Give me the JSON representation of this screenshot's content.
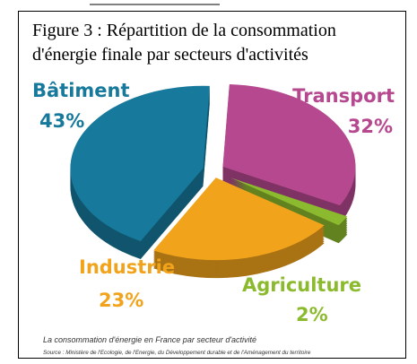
{
  "chart_data": {
    "type": "pie",
    "title": "Figure 3 : Répartition de la consommation d'énergie finale par secteurs d'activités",
    "categories": [
      "Transport",
      "Agriculture",
      "Industrie",
      "Bâtiment"
    ],
    "values": [
      32,
      2,
      23,
      43
    ],
    "value_labels": [
      "32%",
      "2%",
      "23%",
      "43%"
    ],
    "colors": [
      "#b5488f",
      "#8cba2e",
      "#f1a31b",
      "#17799b"
    ],
    "caption": "La consommation d'énergie en France par secteur d'activité",
    "source": "Source : Ministère de l'Ecologie, de l'Energie, du Développement durable et de l'Aménagement du territoire"
  }
}
